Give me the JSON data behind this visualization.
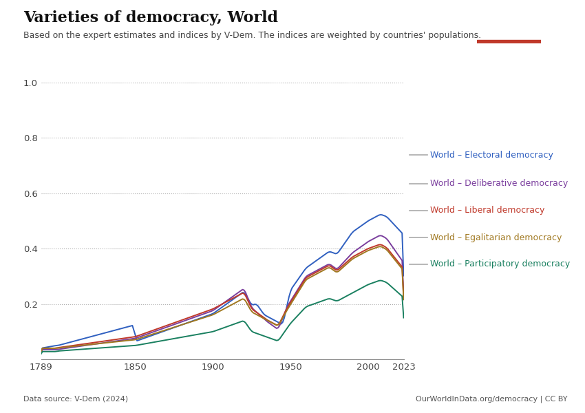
{
  "title": "Varieties of democracy, World",
  "subtitle": "Based on the expert estimates and indices by V-Dem. The indices are weighted by countries' populations.",
  "datasource": "Data source: V-Dem (2024)",
  "credit": "OurWorldInData.org/democracy | CC BY",
  "logo_bg": "#1a3a6e",
  "logo_accent": "#c0392b",
  "series": [
    {
      "label": "World – Electoral democracy",
      "color": "#3060c0",
      "key": "electoral"
    },
    {
      "label": "World – Deliberative democracy",
      "color": "#7b3f9e",
      "key": "deliberative"
    },
    {
      "label": "World – Liberal democracy",
      "color": "#c0392b",
      "key": "liberal"
    },
    {
      "label": "World – Egalitarian democracy",
      "color": "#a07820",
      "key": "egalitarian"
    },
    {
      "label": "World – Participatory democracy",
      "color": "#1a8060",
      "key": "participatory"
    }
  ],
  "xlim": [
    1789,
    2023
  ],
  "ylim": [
    0,
    1.0
  ],
  "yticks": [
    0,
    0.2,
    0.4,
    0.6,
    0.8,
    1.0
  ],
  "xticks": [
    1789,
    1850,
    1900,
    1950,
    2000,
    2023
  ],
  "background_color": "#ffffff",
  "grid_color": "#aaaaaa"
}
